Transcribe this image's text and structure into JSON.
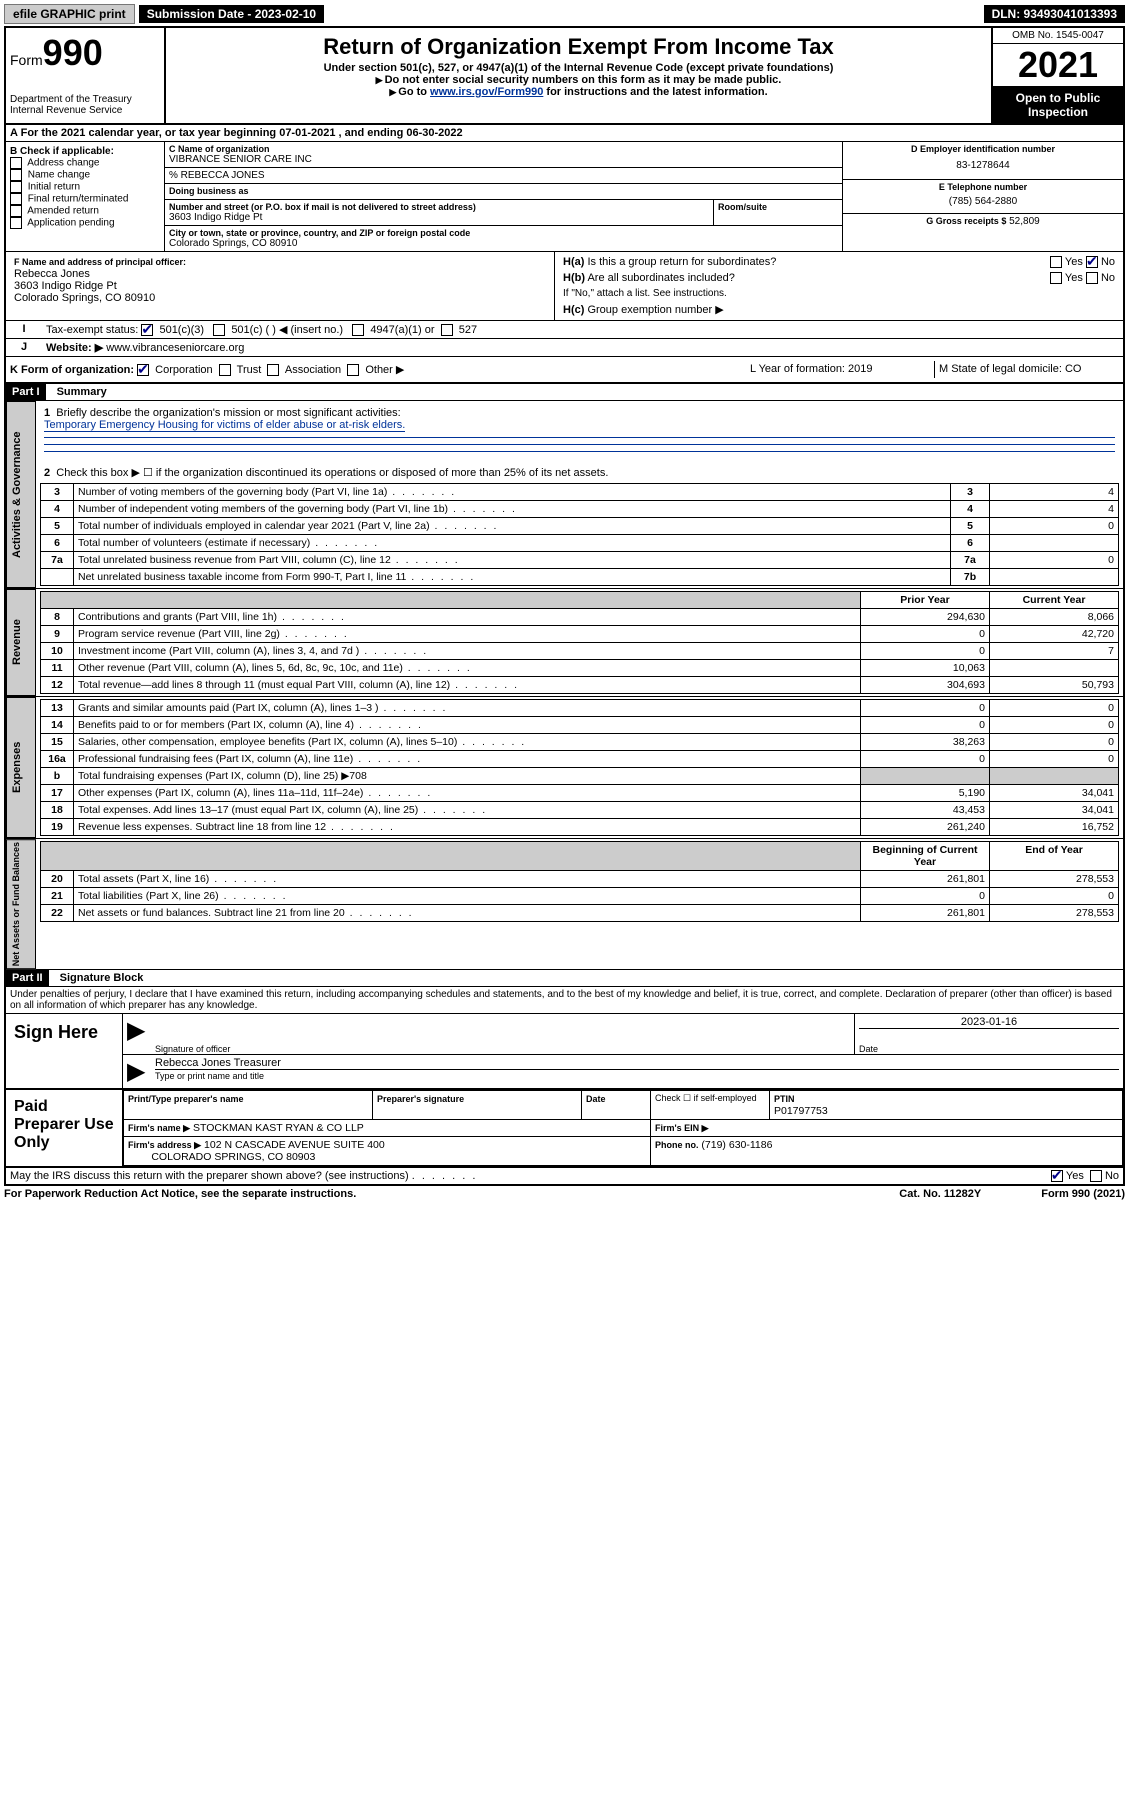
{
  "topbar": {
    "efile": "efile GRAPHIC print",
    "submission": "Submission Date - 2023-02-10",
    "dln": "DLN: 93493041013393"
  },
  "header": {
    "form_prefix": "Form",
    "form_number": "990",
    "dept": "Department of the Treasury",
    "irs": "Internal Revenue Service",
    "title": "Return of Organization Exempt From Income Tax",
    "subtitle": "Under section 501(c), 527, or 4947(a)(1) of the Internal Revenue Code (except private foundations)",
    "note1": "Do not enter social security numbers on this form as it may be made public.",
    "note2_pre": "Go to ",
    "note2_link": "www.irs.gov/Form990",
    "note2_post": " for instructions and the latest information.",
    "omb": "OMB No. 1545-0047",
    "year": "2021",
    "inspect": "Open to Public Inspection"
  },
  "line_a": {
    "text": "For the 2021 calendar year, or tax year beginning 07-01-2021   , and ending 06-30-2022"
  },
  "box_b": {
    "title": "B Check if applicable:",
    "opts": [
      "Address change",
      "Name change",
      "Initial return",
      "Final return/terminated",
      "Amended return",
      "Application pending"
    ]
  },
  "box_c": {
    "name_label": "C Name of organization",
    "name": "VIBRANCE SENIOR CARE INC",
    "care_of": "% REBECCA JONES",
    "dba_label": "Doing business as",
    "addr_label": "Number and street (or P.O. box if mail is not delivered to street address)",
    "room_label": "Room/suite",
    "addr": "3603 Indigo Ridge Pt",
    "city_label": "City or town, state or province, country, and ZIP or foreign postal code",
    "city": "Colorado Springs, CO  80910"
  },
  "box_d": {
    "label": "D Employer identification number",
    "val": "83-1278644"
  },
  "box_e": {
    "label": "E Telephone number",
    "val": "(785) 564-2880"
  },
  "box_g": {
    "label": "G Gross receipts $",
    "val": "52,809"
  },
  "box_f": {
    "label": "F Name and address of principal officer:",
    "name": "Rebecca Jones",
    "addr1": "3603 Indigo Ridge Pt",
    "addr2": "Colorado Springs, CO  80910"
  },
  "box_h": {
    "ha": "Is this a group return for subordinates?",
    "hb": "Are all subordinates included?",
    "hnote": "If \"No,\" attach a list. See instructions.",
    "hc": "Group exemption number ▶"
  },
  "box_i": {
    "label": "Tax-exempt status:",
    "o1": "501(c)(3)",
    "o2": "501(c) (  ) ◀ (insert no.)",
    "o3": "4947(a)(1) or",
    "o4": "527"
  },
  "box_j": {
    "label": "Website: ▶",
    "val": "www.vibranceseniorcare.org"
  },
  "box_k": {
    "label": "K Form of organization:",
    "o1": "Corporation",
    "o2": "Trust",
    "o3": "Association",
    "o4": "Other ▶"
  },
  "box_l": {
    "label": "L Year of formation: 2019"
  },
  "box_m": {
    "label": "M State of legal domicile: CO"
  },
  "part1": {
    "hdr": "Part I",
    "title": "Summary",
    "q1_label": "Briefly describe the organization's mission or most significant activities:",
    "q1_val": "Temporary Emergency Housing for victims of elder abuse or at-risk elders.",
    "q2": "Check this box ▶ ☐ if the organization discontinued its operations or disposed of more than 25% of its net assets.",
    "rows_gov": [
      {
        "n": "3",
        "t": "Number of voting members of the governing body (Part VI, line 1a)",
        "box": "3",
        "v": "4"
      },
      {
        "n": "4",
        "t": "Number of independent voting members of the governing body (Part VI, line 1b)",
        "box": "4",
        "v": "4"
      },
      {
        "n": "5",
        "t": "Total number of individuals employed in calendar year 2021 (Part V, line 2a)",
        "box": "5",
        "v": "0"
      },
      {
        "n": "6",
        "t": "Total number of volunteers (estimate if necessary)",
        "box": "6",
        "v": ""
      },
      {
        "n": "7a",
        "t": "Total unrelated business revenue from Part VIII, column (C), line 12",
        "box": "7a",
        "v": "0"
      },
      {
        "n": "",
        "t": "Net unrelated business taxable income from Form 990-T, Part I, line 11",
        "box": "7b",
        "v": ""
      }
    ],
    "col_prior": "Prior Year",
    "col_curr": "Current Year",
    "rows_rev": [
      {
        "n": "8",
        "t": "Contributions and grants (Part VIII, line 1h)",
        "p": "294,630",
        "c": "8,066"
      },
      {
        "n": "9",
        "t": "Program service revenue (Part VIII, line 2g)",
        "p": "0",
        "c": "42,720"
      },
      {
        "n": "10",
        "t": "Investment income (Part VIII, column (A), lines 3, 4, and 7d )",
        "p": "0",
        "c": "7"
      },
      {
        "n": "11",
        "t": "Other revenue (Part VIII, column (A), lines 5, 6d, 8c, 9c, 10c, and 11e)",
        "p": "10,063",
        "c": ""
      },
      {
        "n": "12",
        "t": "Total revenue—add lines 8 through 11 (must equal Part VIII, column (A), line 12)",
        "p": "304,693",
        "c": "50,793"
      }
    ],
    "rows_exp": [
      {
        "n": "13",
        "t": "Grants and similar amounts paid (Part IX, column (A), lines 1–3 )",
        "p": "0",
        "c": "0"
      },
      {
        "n": "14",
        "t": "Benefits paid to or for members (Part IX, column (A), line 4)",
        "p": "0",
        "c": "0"
      },
      {
        "n": "15",
        "t": "Salaries, other compensation, employee benefits (Part IX, column (A), lines 5–10)",
        "p": "38,263",
        "c": "0"
      },
      {
        "n": "16a",
        "t": "Professional fundraising fees (Part IX, column (A), line 11e)",
        "p": "0",
        "c": "0"
      },
      {
        "n": "b",
        "t": "Total fundraising expenses (Part IX, column (D), line 25) ▶708",
        "p": "",
        "c": "",
        "shaded": true
      },
      {
        "n": "17",
        "t": "Other expenses (Part IX, column (A), lines 11a–11d, 11f–24e)",
        "p": "5,190",
        "c": "34,041"
      },
      {
        "n": "18",
        "t": "Total expenses. Add lines 13–17 (must equal Part IX, column (A), line 25)",
        "p": "43,453",
        "c": "34,041"
      },
      {
        "n": "19",
        "t": "Revenue less expenses. Subtract line 18 from line 12",
        "p": "261,240",
        "c": "16,752"
      }
    ],
    "col_beg": "Beginning of Current Year",
    "col_end": "End of Year",
    "rows_net": [
      {
        "n": "20",
        "t": "Total assets (Part X, line 16)",
        "p": "261,801",
        "c": "278,553"
      },
      {
        "n": "21",
        "t": "Total liabilities (Part X, line 26)",
        "p": "0",
        "c": "0"
      },
      {
        "n": "22",
        "t": "Net assets or fund balances. Subtract line 21 from line 20",
        "p": "261,801",
        "c": "278,553"
      }
    ]
  },
  "part2": {
    "hdr": "Part II",
    "title": "Signature Block",
    "decl": "Under penalties of perjury, I declare that I have examined this return, including accompanying schedules and statements, and to the best of my knowledge and belief, it is true, correct, and complete. Declaration of preparer (other than officer) is based on all information of which preparer has any knowledge."
  },
  "sign": {
    "here": "Sign Here",
    "sig_label": "Signature of officer",
    "date_label": "Date",
    "date": "2023-01-16",
    "name": "Rebecca Jones  Treasurer",
    "name_label": "Type or print name and title"
  },
  "paid": {
    "title": "Paid Preparer Use Only",
    "col1": "Print/Type preparer's name",
    "col2": "Preparer's signature",
    "col3": "Date",
    "col4a": "Check ☐ if self-employed",
    "col4b_label": "PTIN",
    "col4b": "P01797753",
    "firm_label": "Firm's name    ▶",
    "firm": "STOCKMAN KAST RYAN & CO LLP",
    "ein_label": "Firm's EIN ▶",
    "addr_label": "Firm's address ▶",
    "addr1": "102 N CASCADE AVENUE SUITE 400",
    "addr2": "COLORADO SPRINGS, CO  80903",
    "phone_label": "Phone no.",
    "phone": "(719) 630-1186"
  },
  "discuss": "May the IRS discuss this return with the preparer shown above? (see instructions)",
  "footer": {
    "left": "For Paperwork Reduction Act Notice, see the separate instructions.",
    "mid": "Cat. No. 11282Y",
    "right": "Form 990 (2021)"
  },
  "vtabs": {
    "gov": "Activities & Governance",
    "rev": "Revenue",
    "exp": "Expenses",
    "net": "Net Assets or Fund Balances"
  }
}
